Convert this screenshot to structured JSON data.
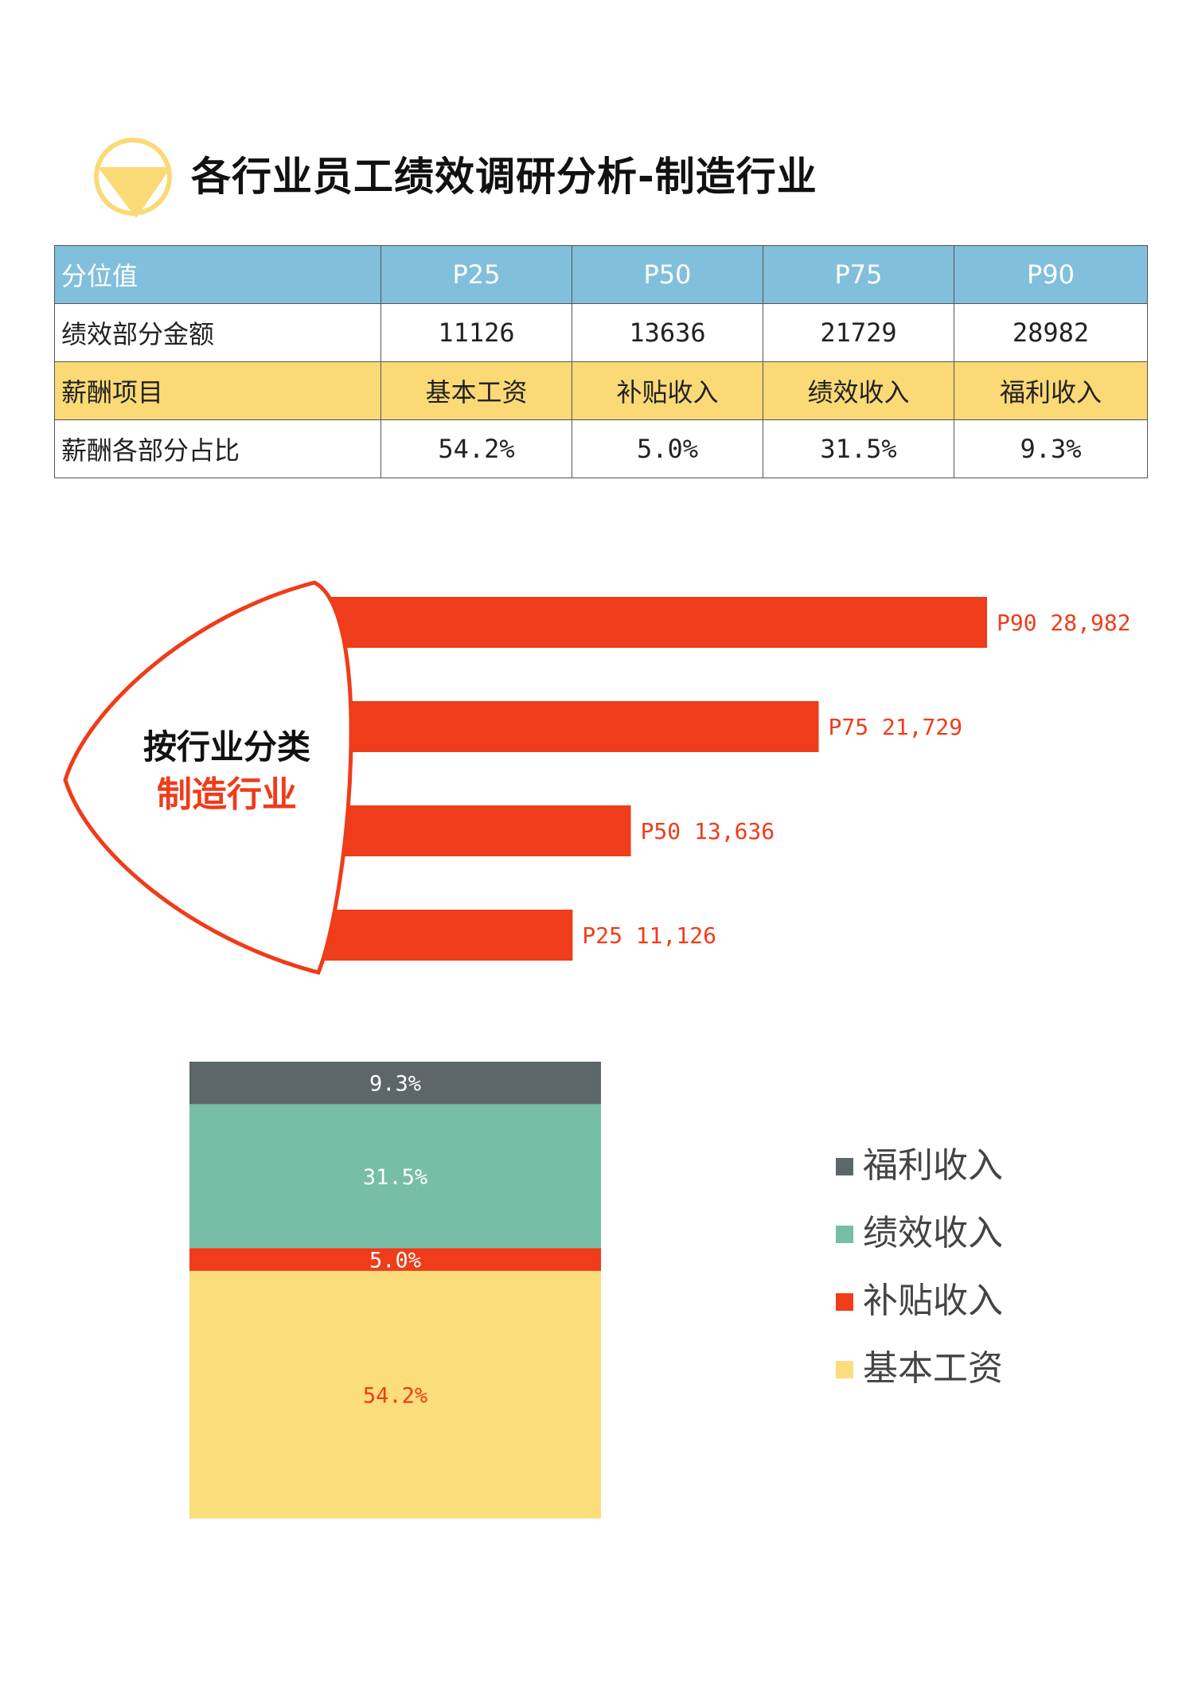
{
  "page": {
    "title": "各行业员工绩效调研分析-制造行业"
  },
  "colors": {
    "header_blue": "#81bfdc",
    "row_yellow": "#fbd976",
    "accent_red": "#ef3c1a",
    "icon_yellow": "#fbd976",
    "dark_gray": "#5d6769",
    "teal": "#76bea5",
    "light_yellow": "#fcdd7c"
  },
  "table": {
    "rows": [
      {
        "style": "blue",
        "cells": [
          "分位值",
          "P25",
          "P50",
          "P75",
          "P90"
        ]
      },
      {
        "style": "white",
        "cells": [
          "绩效部分金额",
          "11126",
          "13636",
          "21729",
          "28982"
        ]
      },
      {
        "style": "yellow",
        "cells": [
          "薪酬项目",
          "基本工资",
          "补贴收入",
          "绩效收入",
          "福利收入"
        ]
      },
      {
        "style": "white",
        "cells": [
          "薪酬各部分占比",
          "54.2%",
          "5.0%",
          "31.5%",
          "9.3%"
        ]
      }
    ]
  },
  "badge": {
    "line1": "按行业分类",
    "line2": "制造行业"
  },
  "chart_data": [
    {
      "type": "bar",
      "orientation": "horizontal",
      "categories": [
        "P90",
        "P75",
        "P50",
        "P25"
      ],
      "values": [
        28982,
        21729,
        13636,
        11126
      ],
      "data_labels": [
        "P90 28,982",
        "P75 21,729",
        "P50 13,636",
        "P25 11,126"
      ],
      "color": "#ef3c1a"
    },
    {
      "type": "bar",
      "stacked": true,
      "categories": [
        ""
      ],
      "series": [
        {
          "name": "基本工资",
          "values": [
            54.2
          ],
          "label": "54.2%",
          "color": "#fcdd7c",
          "label_color": "#ef3c1a"
        },
        {
          "name": "补贴收入",
          "values": [
            5.0
          ],
          "label": "5.0%",
          "color": "#ef3c1a",
          "label_color": "#ffffff"
        },
        {
          "name": "绩效收入",
          "values": [
            31.5
          ],
          "label": "31.5%",
          "color": "#76bea5",
          "label_color": "#ffffff"
        },
        {
          "name": "福利收入",
          "values": [
            9.3
          ],
          "label": "9.3%",
          "color": "#5d6769",
          "label_color": "#ffffff"
        }
      ],
      "legend": [
        "福利收入",
        "绩效收入",
        "补贴收入",
        "基本工资"
      ],
      "legend_position": "right"
    }
  ]
}
